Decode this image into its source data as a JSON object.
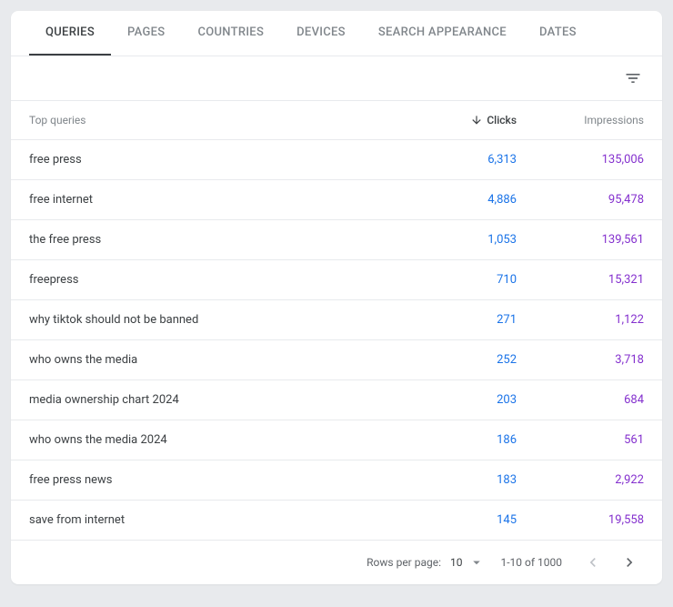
{
  "tabs": [
    {
      "label": "QUERIES",
      "active": true
    },
    {
      "label": "PAGES",
      "active": false
    },
    {
      "label": "COUNTRIES",
      "active": false
    },
    {
      "label": "DEVICES",
      "active": false
    },
    {
      "label": "SEARCH APPEARANCE",
      "active": false
    },
    {
      "label": "DATES",
      "active": false
    }
  ],
  "columns": {
    "query": "Top queries",
    "clicks": "Clicks",
    "impressions": "Impressions"
  },
  "rows": [
    {
      "query": "free press",
      "clicks": "6,313",
      "impressions": "135,006"
    },
    {
      "query": "free internet",
      "clicks": "4,886",
      "impressions": "95,478"
    },
    {
      "query": "the free press",
      "clicks": "1,053",
      "impressions": "139,561"
    },
    {
      "query": "freepress",
      "clicks": "710",
      "impressions": "15,321"
    },
    {
      "query": "why tiktok should not be banned",
      "clicks": "271",
      "impressions": "1,122"
    },
    {
      "query": "who owns the media",
      "clicks": "252",
      "impressions": "3,718"
    },
    {
      "query": "media ownership chart 2024",
      "clicks": "203",
      "impressions": "684"
    },
    {
      "query": "who owns the media 2024",
      "clicks": "186",
      "impressions": "561"
    },
    {
      "query": "free press news",
      "clicks": "183",
      "impressions": "2,922"
    },
    {
      "query": "save from internet",
      "clicks": "145",
      "impressions": "19,558"
    }
  ],
  "footer": {
    "rows_per_page_label": "Rows per page:",
    "rows_per_page_value": "10",
    "range": "1-10 of 1000"
  },
  "colors": {
    "clicks": "#1a73e8",
    "impressions": "#8430ce",
    "text": "#3c4043",
    "muted": "#80868b",
    "border": "#e8eaed",
    "background": "#ffffff"
  }
}
